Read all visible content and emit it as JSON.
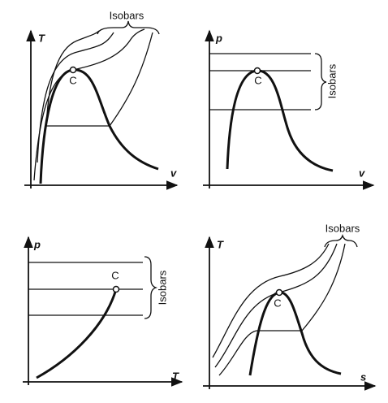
{
  "panels": [
    {
      "y_label": "T",
      "x_label": "v",
      "critical_label": "C",
      "isobars_label": "Isobars"
    },
    {
      "y_label": "p",
      "x_label": "v",
      "critical_label": "C",
      "isobars_label": "Isobars"
    },
    {
      "y_label": "p",
      "x_label": "T",
      "critical_label": "C",
      "isobars_label": "Isobars"
    },
    {
      "y_label": "T",
      "x_label": "s",
      "critical_label": "C",
      "isobars_label": "Isobars"
    }
  ]
}
